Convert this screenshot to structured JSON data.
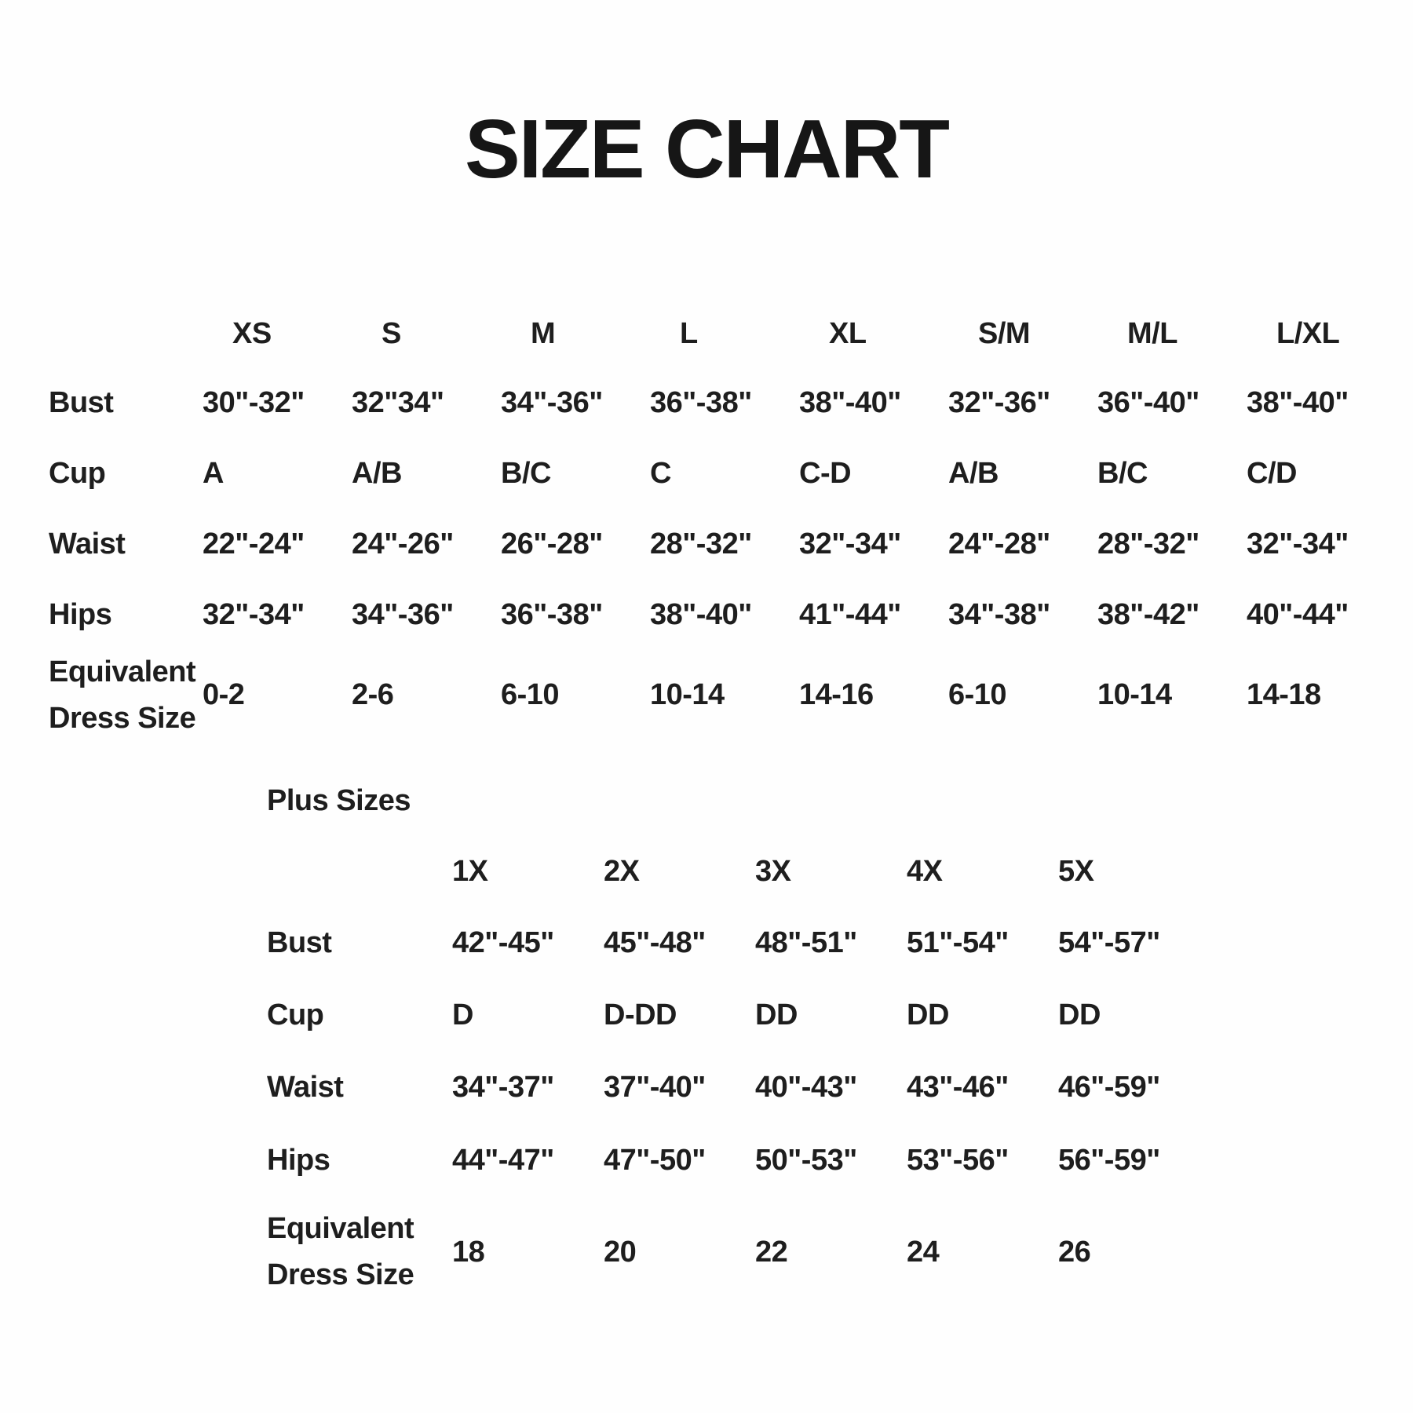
{
  "title": "SIZE CHART",
  "standard_table": {
    "columns": [
      "XS",
      "S",
      "M",
      "L",
      "XL",
      "S/M",
      "M/L",
      "L/XL"
    ],
    "rows": [
      {
        "label": "Bust",
        "values": [
          "30\"-32\"",
          "32\"34\"",
          "34\"-36\"",
          "36\"-38\"",
          "38\"-40\"",
          "32\"-36\"",
          "36\"-40\"",
          "38\"-40\""
        ]
      },
      {
        "label": "Cup",
        "values": [
          "A",
          "A/B",
          "B/C",
          "C",
          "C-D",
          "A/B",
          "B/C",
          "C/D"
        ]
      },
      {
        "label": "Waist",
        "values": [
          "22\"-24\"",
          "24\"-26\"",
          "26\"-28\"",
          "28\"-32\"",
          "32\"-34\"",
          "24\"-28\"",
          "28\"-32\"",
          "32\"-34\""
        ]
      },
      {
        "label": "Hips",
        "values": [
          "32\"-34\"",
          "34\"-36\"",
          "36\"-38\"",
          "38\"-40\"",
          "41\"-44\"",
          "34\"-38\"",
          "38\"-42\"",
          "40\"-44\""
        ]
      },
      {
        "label_lines": [
          "Equivalent",
          "Dress Size"
        ],
        "values": [
          "0-2",
          "2-6",
          "6-10",
          "10-14",
          "14-16",
          "6-10",
          "10-14",
          "14-18"
        ]
      }
    ]
  },
  "plus_table": {
    "section_label": "Plus Sizes",
    "columns": [
      "1X",
      "2X",
      "3X",
      "4X",
      "5X"
    ],
    "rows": [
      {
        "label": "Bust",
        "values": [
          "42\"-45\"",
          "45\"-48\"",
          "48\"-51\"",
          "51\"-54\"",
          "54\"-57\""
        ]
      },
      {
        "label": "Cup",
        "values": [
          "D",
          "D-DD",
          "DD",
          "DD",
          "DD"
        ]
      },
      {
        "label": "Waist",
        "values": [
          "34\"-37\"",
          "37\"-40\"",
          "40\"-43\"",
          "43\"-46\"",
          "46\"-59\""
        ]
      },
      {
        "label": "Hips",
        "values": [
          "44\"-47\"",
          "47\"-50\"",
          "50\"-53\"",
          "53\"-56\"",
          "56\"-59\""
        ]
      },
      {
        "label_lines": [
          "Equivalent",
          "Dress Size"
        ],
        "values": [
          "18",
          "20",
          "22",
          "24",
          "26"
        ]
      }
    ]
  },
  "colors": {
    "background": "#fefefe",
    "text": "#1e1e1e"
  }
}
